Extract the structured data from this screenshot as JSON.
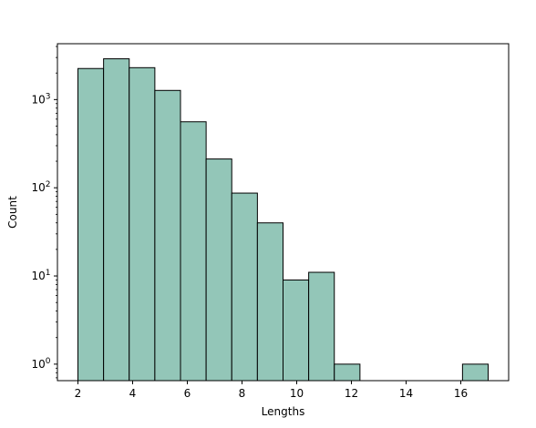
{
  "chart_data": {
    "type": "bar",
    "xlabel": "Lengths",
    "ylabel": "Count",
    "yscale": "log",
    "xlim": [
      1.25,
      17.75
    ],
    "ylim": [
      0.65,
      4300
    ],
    "bar_color": "#93c6b8",
    "edge_color": "#000000",
    "grid": false,
    "bins": [
      {
        "x0": 2.0,
        "x1": 2.9375,
        "value": 2250
      },
      {
        "x0": 2.9375,
        "x1": 3.875,
        "value": 2900
      },
      {
        "x0": 3.875,
        "x1": 4.8125,
        "value": 2300
      },
      {
        "x0": 4.8125,
        "x1": 5.75,
        "value": 1270
      },
      {
        "x0": 5.75,
        "x1": 6.6875,
        "value": 560
      },
      {
        "x0": 6.6875,
        "x1": 7.625,
        "value": 212
      },
      {
        "x0": 7.625,
        "x1": 8.5625,
        "value": 87
      },
      {
        "x0": 8.5625,
        "x1": 9.5,
        "value": 40
      },
      {
        "x0": 9.5,
        "x1": 10.4375,
        "value": 9
      },
      {
        "x0": 10.4375,
        "x1": 11.375,
        "value": 11
      },
      {
        "x0": 11.375,
        "x1": 12.3125,
        "value": 1
      },
      {
        "x0": 16.0625,
        "x1": 17.0,
        "value": 1
      }
    ],
    "x_ticks": [
      {
        "value": 2,
        "label": "2"
      },
      {
        "value": 4,
        "label": "4"
      },
      {
        "value": 6,
        "label": "6"
      },
      {
        "value": 8,
        "label": "8"
      },
      {
        "value": 10,
        "label": "10"
      },
      {
        "value": 12,
        "label": "12"
      },
      {
        "value": 14,
        "label": "14"
      },
      {
        "value": 16,
        "label": "16"
      }
    ],
    "y_ticks": [
      {
        "value": 1,
        "base": "10",
        "exp": "0"
      },
      {
        "value": 10,
        "base": "10",
        "exp": "1"
      },
      {
        "value": 100,
        "base": "10",
        "exp": "2"
      },
      {
        "value": 1000,
        "base": "10",
        "exp": "3"
      }
    ]
  }
}
